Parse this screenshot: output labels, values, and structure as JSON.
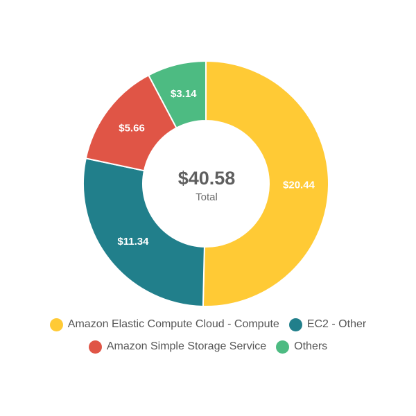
{
  "chart_data": {
    "type": "pie",
    "variant": "donut",
    "categories": [
      "Amazon Elastic Compute Cloud - Compute",
      "EC2 - Other",
      "Amazon Simple Storage Service",
      "Others"
    ],
    "values": [
      20.44,
      11.34,
      5.66,
      3.14
    ],
    "value_labels": [
      "$20.44",
      "$11.34",
      "$5.66",
      "$3.14"
    ],
    "colors": [
      "#FFCA35",
      "#217F8B",
      "#E05546",
      "#4DBB82"
    ],
    "center": {
      "value": "$40.58",
      "caption": "Total"
    },
    "legend_position": "bottom",
    "start_angle": "top",
    "direction": "clockwise"
  }
}
